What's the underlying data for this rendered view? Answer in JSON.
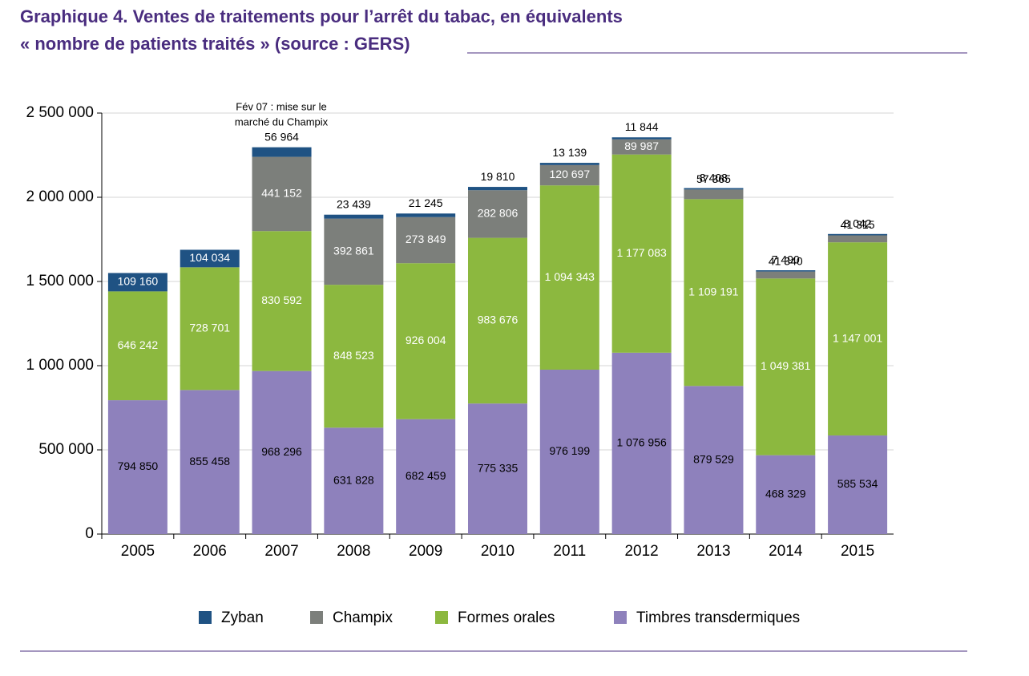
{
  "chart_data": {
    "type": "stacked-bar",
    "title": [
      "Graphique 4. Ventes de traitements pour l’arrêt du tabac, en équivalents",
      "« nombre de patients traités » (source : GERS)"
    ],
    "annotation": [
      "Fév 07 : mise sur le",
      "marché du Champix"
    ],
    "categories": [
      "2005",
      "2006",
      "2007",
      "2008",
      "2009",
      "2010",
      "2011",
      "2012",
      "2013",
      "2014",
      "2015"
    ],
    "series": [
      {
        "name": "Zyban",
        "color": "#1f5283",
        "values": [
          109160,
          104034,
          56964,
          23439,
          21245,
          19810,
          13139,
          11844,
          8408,
          7490,
          8042
        ],
        "value_labels": [
          "109 160",
          "104 034",
          "56 964",
          "23 439",
          "21 245",
          "19 810",
          "13 139",
          "11 844",
          "8 408",
          "7 490",
          "8 042"
        ]
      },
      {
        "name": "Champix",
        "color": "#7c7f7b",
        "values": [
          null,
          null,
          441152,
          392861,
          273849,
          282806,
          120697,
          89987,
          57365,
          41340,
          41315
        ],
        "value_labels": [
          null,
          null,
          "441 152",
          "392 861",
          "273 849",
          "282 806",
          "120 697",
          "89 987",
          "57 365",
          "41 340",
          "41 315"
        ]
      },
      {
        "name": "Formes orales",
        "color": "#8cb83f",
        "values": [
          646242,
          728701,
          830592,
          848523,
          926004,
          983676,
          1094343,
          1177083,
          1109191,
          1049381,
          1147001
        ],
        "value_labels": [
          "646 242",
          "728 701",
          "830 592",
          "848 523",
          "926 004",
          "983 676",
          "1 094 343",
          "1 177 083",
          "1 109 191",
          "1 049 381",
          "1 147 001"
        ]
      },
      {
        "name": "Timbres transdermiques",
        "color": "#8e81bc",
        "values": [
          794850,
          855458,
          968296,
          631828,
          682459,
          775335,
          976199,
          1076956,
          879529,
          468329,
          585534
        ],
        "value_labels": [
          "794 850",
          "855 458",
          "968 296",
          "631 828",
          "682 459",
          "775 335",
          "976 199",
          "1 076 956",
          "879 529",
          "468 329",
          "585 534"
        ]
      }
    ],
    "ylim": [
      0,
      2500000
    ],
    "yticks": [
      0,
      {
        "value": 500000,
        "label": "500 000"
      },
      {
        "value": 1000000,
        "label": "1 000 000"
      },
      {
        "value": 1500000,
        "label": "1 500 000"
      },
      {
        "value": 2000000,
        "label": "2 000 000"
      },
      {
        "value": 2500000,
        "label": "2 500 000"
      }
    ],
    "grid": true
  }
}
